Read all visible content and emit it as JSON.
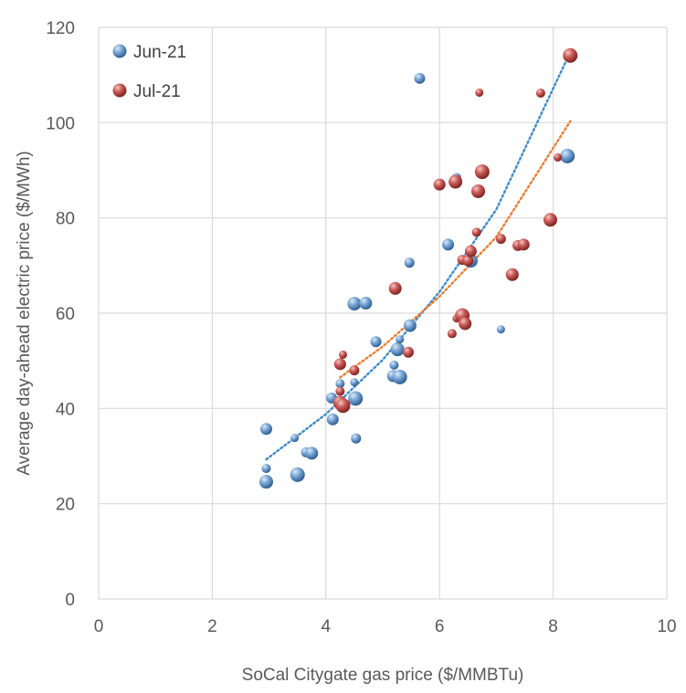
{
  "chart_data": {
    "type": "scatter",
    "title": "",
    "xlabel": "SoCal Citygate  gas price ($/MMBTu)",
    "ylabel": "Average day-ahead electric price ($/MWh)",
    "xlim": [
      0,
      10
    ],
    "ylim": [
      0,
      120
    ],
    "x_ticks": [
      0,
      2,
      4,
      6,
      8,
      10
    ],
    "y_ticks": [
      0,
      20,
      40,
      60,
      80,
      100,
      120
    ],
    "grid": true,
    "legend_position": "top-left",
    "series": [
      {
        "name": "Jun-21",
        "color": "#5b8fc7",
        "trendline_color": "#3d8bd0",
        "points": [
          [
            2.95,
            35.7
          ],
          [
            2.95,
            27.4
          ],
          [
            2.95,
            24.6
          ],
          [
            3.45,
            33.8
          ],
          [
            3.5,
            26.1
          ],
          [
            3.65,
            30.8
          ],
          [
            3.75,
            30.6
          ],
          [
            4.1,
            42.2
          ],
          [
            4.12,
            37.7
          ],
          [
            4.25,
            45.2
          ],
          [
            4.5,
            62.0
          ],
          [
            4.5,
            45.5
          ],
          [
            4.52,
            42.1
          ],
          [
            4.53,
            33.7
          ],
          [
            4.7,
            62.1
          ],
          [
            4.88,
            54.0
          ],
          [
            5.18,
            46.8
          ],
          [
            5.2,
            49.1
          ],
          [
            5.26,
            52.4
          ],
          [
            5.3,
            54.5
          ],
          [
            5.3,
            46.6
          ],
          [
            5.47,
            70.6
          ],
          [
            5.48,
            57.4
          ],
          [
            5.65,
            109.3
          ],
          [
            6.15,
            74.4
          ],
          [
            6.3,
            88.5
          ],
          [
            6.55,
            71.0
          ],
          [
            7.08,
            56.6
          ],
          [
            8.25,
            93.0
          ]
        ]
      },
      {
        "name": "Jul-21",
        "color": "#c0504d",
        "trendline_color": "#ed7d31",
        "points": [
          [
            4.25,
            49.3
          ],
          [
            4.25,
            43.6
          ],
          [
            4.25,
            41.2
          ],
          [
            4.3,
            51.3
          ],
          [
            4.3,
            40.6
          ],
          [
            4.5,
            48.0
          ],
          [
            5.22,
            65.2
          ],
          [
            5.45,
            51.8
          ],
          [
            6.0,
            87.0
          ],
          [
            6.22,
            55.7
          ],
          [
            6.28,
            87.6
          ],
          [
            6.3,
            58.9
          ],
          [
            6.4,
            59.5
          ],
          [
            6.4,
            71.2
          ],
          [
            6.45,
            57.8
          ],
          [
            6.5,
            71.0
          ],
          [
            6.55,
            73.0
          ],
          [
            6.65,
            77.0
          ],
          [
            6.68,
            85.6
          ],
          [
            6.7,
            106.3
          ],
          [
            6.75,
            89.7
          ],
          [
            7.08,
            75.6
          ],
          [
            7.28,
            68.1
          ],
          [
            7.38,
            74.2
          ],
          [
            7.48,
            74.4
          ],
          [
            7.78,
            106.2
          ],
          [
            7.95,
            79.6
          ],
          [
            8.08,
            92.7
          ],
          [
            8.3,
            114.1
          ]
        ]
      }
    ],
    "trendlines": [
      {
        "series": "Jun-21",
        "style": "dotted",
        "x_range": [
          2.95,
          8.25
        ],
        "points": [
          [
            2.95,
            29.3
          ],
          [
            4.0,
            38.8
          ],
          [
            5.0,
            50.2
          ],
          [
            6.0,
            64.5
          ],
          [
            7.0,
            81.8
          ],
          [
            8.25,
            113.5
          ]
        ]
      },
      {
        "series": "Jul-21",
        "style": "dotted",
        "x_range": [
          4.25,
          8.3
        ],
        "points": [
          [
            4.25,
            46.5
          ],
          [
            5.0,
            53.0
          ],
          [
            6.0,
            63.5
          ],
          [
            7.0,
            76.0
          ],
          [
            8.3,
            100.3
          ]
        ]
      }
    ]
  }
}
